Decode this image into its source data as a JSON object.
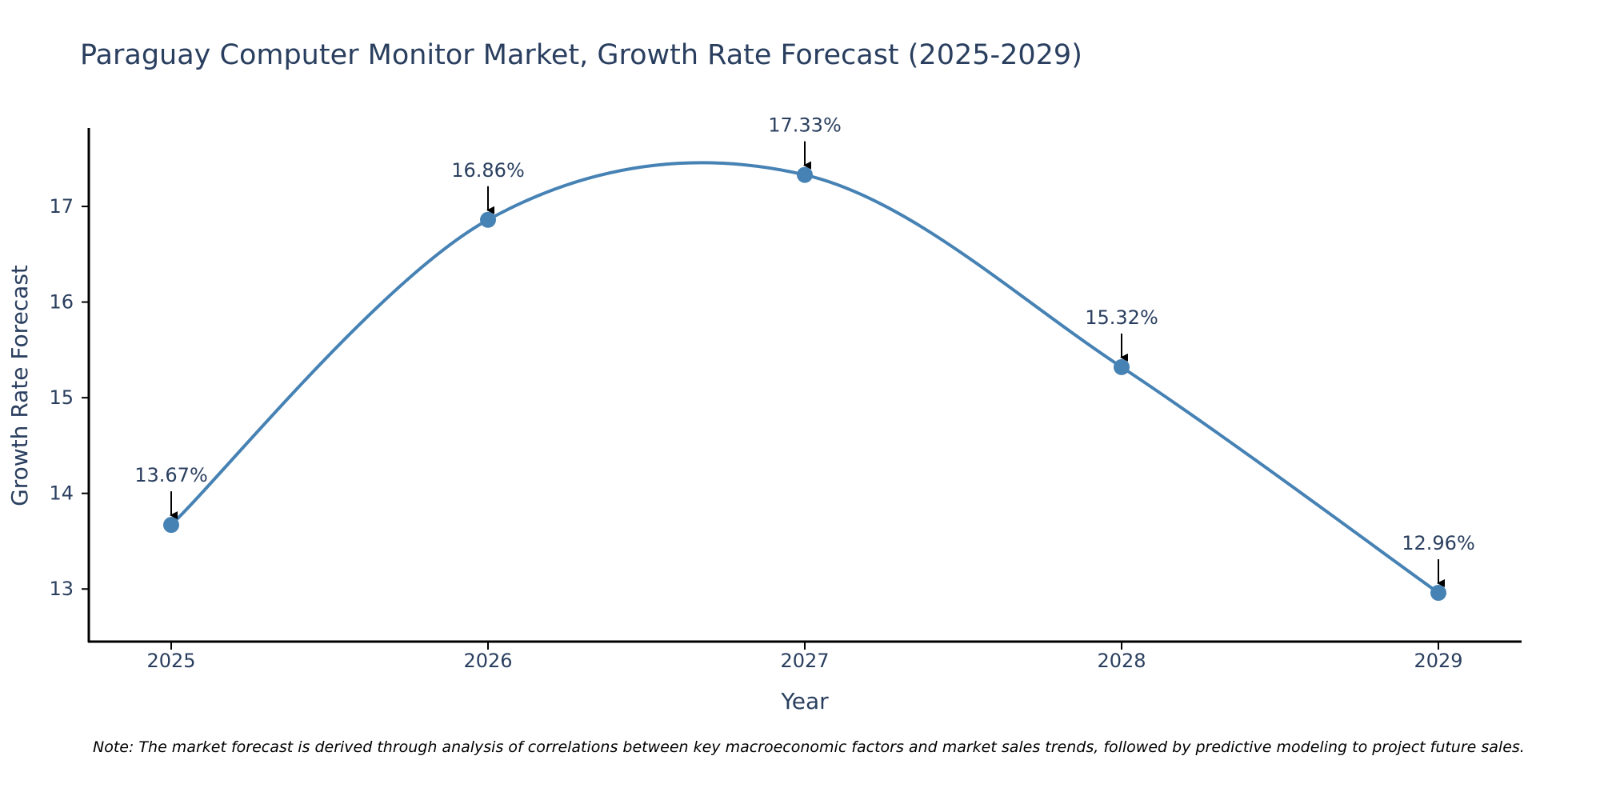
{
  "chart_data": {
    "type": "line",
    "title": "Paraguay Computer Monitor Market, Growth Rate Forecast (2025-2029)",
    "xlabel": "Year",
    "ylabel": "Growth Rate Forecast",
    "categories": [
      "2025",
      "2026",
      "2027",
      "2028",
      "2029"
    ],
    "values": [
      13.67,
      16.86,
      17.33,
      15.32,
      12.96
    ],
    "data_labels": [
      "13.67%",
      "16.86%",
      "17.33%",
      "15.32%",
      "12.96%"
    ],
    "y_ticks": [
      13,
      14,
      15,
      16,
      17
    ],
    "ylim": [
      12.45,
      17.82
    ],
    "line_shape": "spline",
    "grid": false,
    "legend": "none",
    "line_color": "#4682b4",
    "marker_color": "#4682b4",
    "arrow_color": "#000000"
  },
  "note": "Note: The market forecast is derived through analysis of correlations between key macroeconomic factors and market sales trends, followed by predictive modeling to project future sales."
}
